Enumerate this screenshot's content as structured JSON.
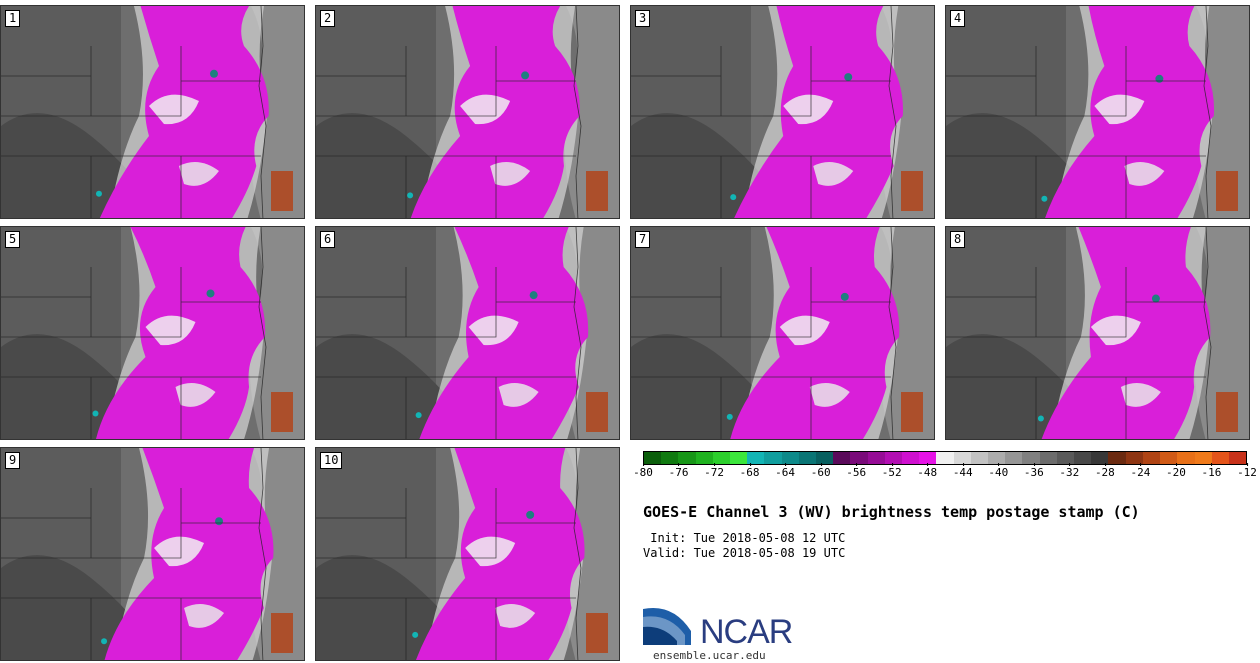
{
  "panels": [
    {
      "label": "1"
    },
    {
      "label": "2"
    },
    {
      "label": "3"
    },
    {
      "label": "4"
    },
    {
      "label": "5"
    },
    {
      "label": "6"
    },
    {
      "label": "7"
    },
    {
      "label": "8"
    },
    {
      "label": "9"
    },
    {
      "label": "10"
    }
  ],
  "colorbar": {
    "colors": [
      "#0b5e0b",
      "#107a10",
      "#179617",
      "#1fb21f",
      "#2ccf2c",
      "#3ce63c",
      "#12b5b5",
      "#109e9e",
      "#0d8a8a",
      "#0a7575",
      "#086060",
      "#5a0a5a",
      "#7a0a7a",
      "#960c96",
      "#b20eb2",
      "#cf10cf",
      "#e612e6",
      "#f0f0f0",
      "#d8d8d8",
      "#c2c2c2",
      "#acacac",
      "#969696",
      "#808080",
      "#6c6c6c",
      "#5a5a5a",
      "#484848",
      "#383838",
      "#6b2a10",
      "#8e3512",
      "#b04414",
      "#d05a16",
      "#e87018",
      "#f07a1a",
      "#e4541a",
      "#c8321a"
    ],
    "ticks": [
      "-80",
      "-76",
      "-72",
      "-68",
      "-64",
      "-60",
      "-56",
      "-52",
      "-48",
      "-44",
      "-40",
      "-36",
      "-32",
      "-28",
      "-24",
      "-20",
      "-16",
      "-12"
    ]
  },
  "title": "GOES-E Channel 3 (WV) brightness temp postage stamp (C)",
  "init_line": " Init: Tue 2018-05-08 12 UTC",
  "valid_line": "Valid: Tue 2018-05-08 19 UTC",
  "logo_text": "NCAR",
  "website": "ensemble.ucar.edu"
}
